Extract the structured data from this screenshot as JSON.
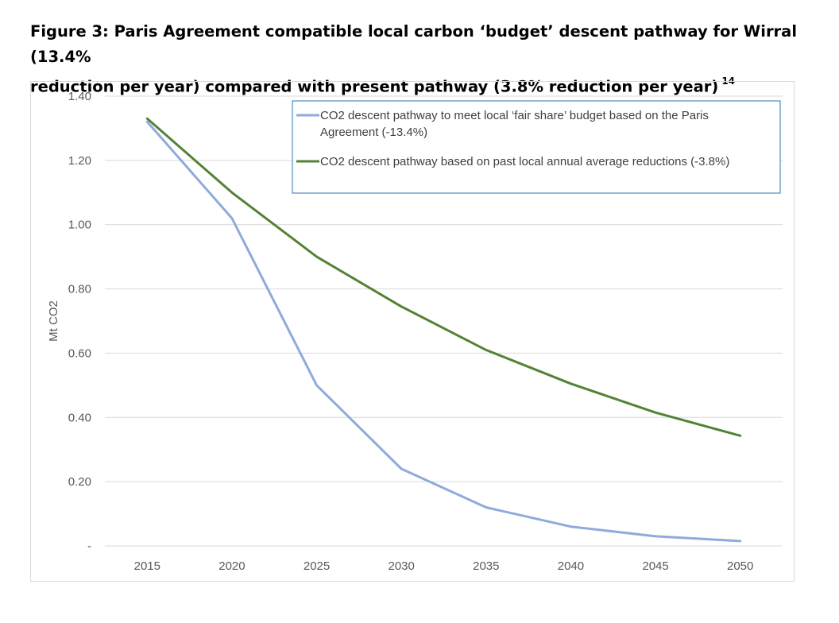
{
  "figure": {
    "caption_line1": "Figure 3: Paris Agreement compatible local carbon ‘budget’ descent pathway for Wirral (13.4%",
    "caption_line2": "reduction per year) compared with present pathway (3.8% reduction per year)",
    "footnote_ref": "14"
  },
  "chart_data": {
    "type": "line",
    "title": "",
    "xlabel": "",
    "ylabel": "Mt CO2",
    "x": [
      2015,
      2020,
      2025,
      2030,
      2035,
      2040,
      2045,
      2050
    ],
    "ylim": [
      0,
      1.4
    ],
    "yticks": [
      0,
      0.2,
      0.4,
      0.6,
      0.8,
      1.0,
      1.2,
      1.4
    ],
    "ytick_labels": [
      "-",
      "0.20",
      "0.40",
      "0.60",
      "0.80",
      "1.00",
      "1.20",
      "1.40"
    ],
    "grid": true,
    "legend_position": "top-right",
    "series": [
      {
        "name": "CO2 descent pathway to meet local ‘fair share’ budget based on the Paris Agreement (-13.4%)",
        "legend_lines": [
          "CO2 descent pathway to meet local ‘fair share’ budget based on the Paris",
          "Agreement (-13.4%)"
        ],
        "color": "#8faadc",
        "values": [
          1.32,
          1.02,
          0.5,
          0.24,
          0.12,
          0.06,
          0.03,
          0.015
        ]
      },
      {
        "name": "CO2 descent pathway based on  past local annual average reductions (-3.8%)",
        "legend_lines": [
          "CO2 descent pathway based on  past local annual average reductions (-3.8%)"
        ],
        "color": "#548235",
        "values": [
          1.33,
          1.1,
          0.9,
          0.745,
          0.61,
          0.505,
          0.415,
          0.343
        ]
      }
    ]
  }
}
